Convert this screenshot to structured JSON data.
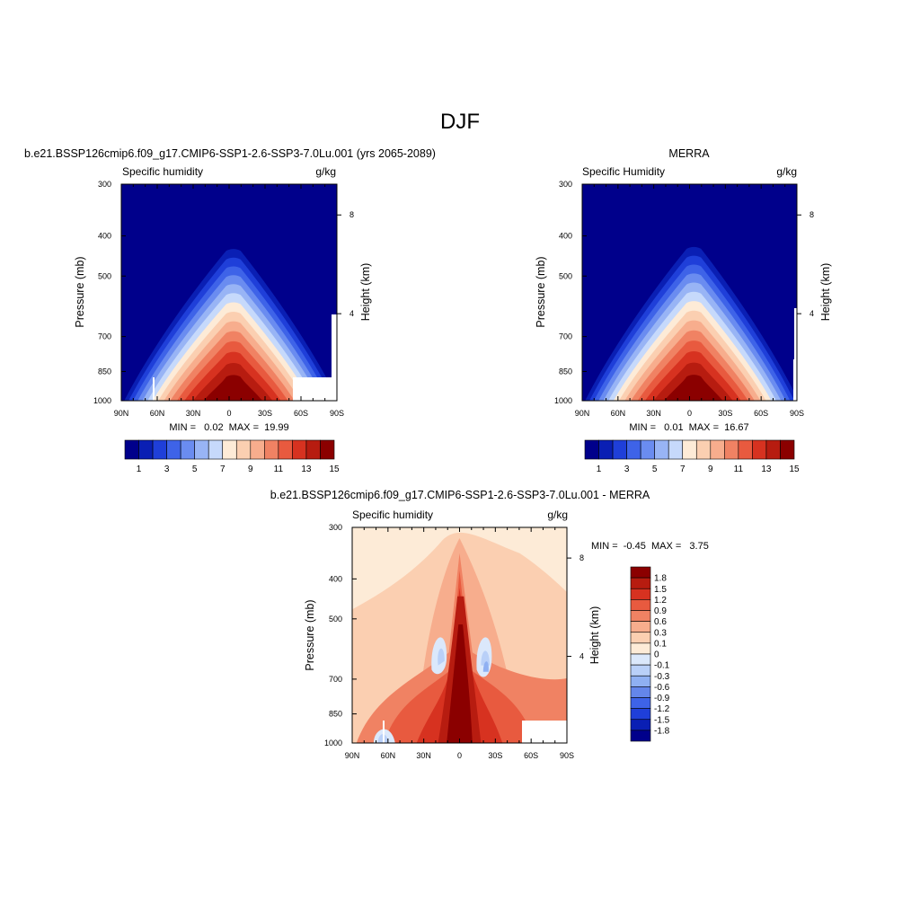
{
  "figure": {
    "title": "DJF",
    "top_left_heading": "b.e21.BSSP126cmip6.f09_g17.CMIP6-SSP1-2.6-SSP3-7.0Lu.001 (yrs 2065-2089)",
    "top_right_heading": "MERRA",
    "bottom_heading": "b.e21.BSSP126cmip6.f09_g17.CMIP6-SSP1-2.6-SSP3-7.0Lu.001 - MERRA"
  },
  "chart_data": [
    {
      "id": "model",
      "type": "heatmap",
      "title": "b.e21.BSSP126cmip6.f09_g17.CMIP6-SSP1-2.6-SSP3-7.0Lu.001 (yrs 2065-2089)",
      "variable": "Specific humidity",
      "units": "g/kg",
      "ylabel": "Pressure (mb)",
      "ylabel_right": "Height (km)",
      "x_ticks": [
        "90N",
        "60N",
        "30N",
        "0",
        "30S",
        "60S",
        "90S"
      ],
      "y_ticks": [
        300,
        400,
        500,
        700,
        850,
        1000
      ],
      "y_right_ticks": [
        8,
        4
      ],
      "ylim": [
        1000,
        300
      ],
      "y_scale": "log",
      "stats_text": "MIN =   0.02  MAX =  19.99",
      "min": 0.02,
      "max": 19.99,
      "peak_height": 0.31,
      "contour_levels": [
        0,
        1,
        2,
        3,
        4,
        5,
        6,
        7,
        8,
        9,
        10,
        11,
        12,
        13,
        14,
        15,
        16
      ],
      "colorbar": {
        "orientation": "horizontal",
        "labels": [
          "1",
          "3",
          "5",
          "7",
          "9",
          "11",
          "13",
          "15"
        ],
        "colors": [
          "#00008b",
          "#0a1fb4",
          "#1f3fd9",
          "#3e63e8",
          "#6a8cf0",
          "#98b4f5",
          "#c6d9fb",
          "#fdebd7",
          "#fbcfb1",
          "#f7ad8d",
          "#f08263",
          "#e85a3f",
          "#d73220",
          "#b71c10",
          "#8b0000"
        ]
      }
    },
    {
      "id": "obs",
      "type": "heatmap",
      "title": "MERRA",
      "variable": "Specific Humidity",
      "units": "g/kg",
      "ylabel": "Pressure (mb)",
      "ylabel_right": "Height (km)",
      "x_ticks": [
        "90N",
        "60N",
        "30N",
        "0",
        "30S",
        "60S",
        "90S"
      ],
      "y_ticks": [
        300,
        400,
        500,
        700,
        850,
        1000
      ],
      "y_right_ticks": [
        8,
        4
      ],
      "ylim": [
        1000,
        300
      ],
      "y_scale": "log",
      "stats_text": "MIN =   0.01  MAX =  16.67",
      "min": 0.01,
      "max": 16.67,
      "peak_height": 0.3,
      "contour_levels": [
        0,
        1,
        2,
        3,
        4,
        5,
        6,
        7,
        8,
        9,
        10,
        11,
        12,
        13,
        14,
        15,
        16
      ],
      "colorbar": {
        "orientation": "horizontal",
        "labels": [
          "1",
          "3",
          "5",
          "7",
          "9",
          "11",
          "13",
          "15"
        ],
        "colors": [
          "#00008b",
          "#0a1fb4",
          "#1f3fd9",
          "#3e63e8",
          "#6a8cf0",
          "#98b4f5",
          "#c6d9fb",
          "#fdebd7",
          "#fbcfb1",
          "#f7ad8d",
          "#f08263",
          "#e85a3f",
          "#d73220",
          "#b71c10",
          "#8b0000"
        ]
      }
    },
    {
      "id": "diff",
      "type": "heatmap",
      "title": "b.e21.BSSP126cmip6.f09_g17.CMIP6-SSP1-2.6-SSP3-7.0Lu.001 - MERRA",
      "variable": "Specific humidity",
      "units": "g/kg",
      "ylabel": "Pressure (mb)",
      "ylabel_right": "Height (km)",
      "x_ticks": [
        "90N",
        "60N",
        "30N",
        "0",
        "30S",
        "60S",
        "90S"
      ],
      "y_ticks": [
        300,
        400,
        500,
        700,
        850,
        1000
      ],
      "y_right_ticks": [
        8,
        4
      ],
      "ylim": [
        1000,
        300
      ],
      "y_scale": "log",
      "stats_text": "MIN =  -0.45  MAX =   3.75",
      "min": -0.45,
      "max": 3.75,
      "contour_levels": [
        -1.8,
        -1.5,
        -1.2,
        -0.9,
        -0.6,
        -0.3,
        -0.1,
        0,
        0.1,
        0.3,
        0.6,
        0.9,
        1.2,
        1.5,
        1.8
      ],
      "colorbar": {
        "orientation": "vertical",
        "labels": [
          "1.8",
          "1.5",
          "1.2",
          "0.9",
          "0.6",
          "0.3",
          "0.1",
          "0",
          "-0.1",
          "-0.3",
          "-0.6",
          "-0.9",
          "-1.2",
          "-1.5",
          "-1.8"
        ],
        "colors": [
          "#8b0000",
          "#b71c10",
          "#d73220",
          "#e85a3f",
          "#f08263",
          "#f7ad8d",
          "#fbcfb1",
          "#fdebd7",
          "#dbe8fb",
          "#b9d0f8",
          "#8fb0f2",
          "#6486ea",
          "#3e63e8",
          "#1f3fd9",
          "#0a1fb4",
          "#00008b"
        ]
      }
    }
  ]
}
